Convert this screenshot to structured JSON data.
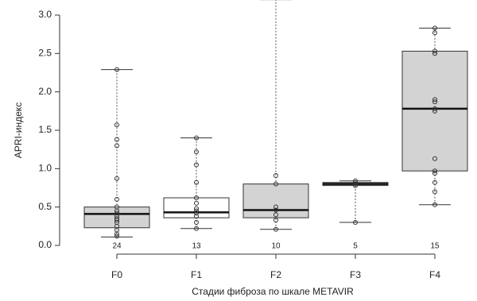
{
  "chart_data": {
    "type": "box",
    "x_label": "Стадии фиброза по шкале METAVIR",
    "y_label": "APRI-индекс",
    "categories": [
      "F0",
      "F1",
      "F2",
      "F3",
      "F4"
    ],
    "counts": [
      24,
      13,
      10,
      5,
      15
    ],
    "ylim": [
      0,
      3.0
    ],
    "yticks": [
      {
        "value": 0,
        "label": "0.0"
      },
      {
        "value": 0.5,
        "label": "0.5"
      },
      {
        "value": 1,
        "label": "1.0"
      },
      {
        "value": 1.5,
        "label": "1.5"
      },
      {
        "value": 2,
        "label": "2.0"
      },
      {
        "value": 2.5,
        "label": "2.5"
      },
      {
        "value": 3,
        "label": "3.0"
      }
    ],
    "boxes": [
      {
        "whisker_low": 0.11,
        "q1": 0.23,
        "median": 0.41,
        "q3": 0.5,
        "whisker_high": 2.29,
        "color": "#d3d3d3",
        "points": [
          2.29,
          1.57,
          1.38,
          1.3,
          0.87,
          0.6,
          0.5,
          0.45,
          0.42,
          0.38,
          0.35,
          0.33,
          0.3,
          0.25,
          0.2,
          0.15,
          0.12
        ]
      },
      {
        "whisker_low": 0.22,
        "q1": 0.36,
        "median": 0.43,
        "q3": 0.62,
        "whisker_high": 1.4,
        "color": "#ffffff",
        "points": [
          1.4,
          1.22,
          1.05,
          0.82,
          0.62,
          0.55,
          0.48,
          0.45,
          0.42,
          0.38,
          0.3,
          0.22
        ]
      },
      {
        "whisker_low": 0.21,
        "q1": 0.36,
        "median": 0.46,
        "q3": 0.8,
        "whisker_high": 3.2,
        "color": "#d3d3d3",
        "points": [
          0.91,
          0.8,
          0.5,
          0.46,
          0.4,
          0.33,
          0.21
        ]
      },
      {
        "whisker_low": 0.3,
        "q1": 0.78,
        "median": 0.8,
        "q3": 0.82,
        "whisker_high": 0.84,
        "color": "#d3d3d3",
        "points": [
          0.84,
          0.82,
          0.8,
          0.78,
          0.3
        ]
      },
      {
        "whisker_low": 0.53,
        "q1": 0.97,
        "median": 1.78,
        "q3": 2.53,
        "whisker_high": 2.83,
        "color": "#d3d3d3",
        "points": [
          2.83,
          2.77,
          2.53,
          2.5,
          1.9,
          1.87,
          1.78,
          1.75,
          1.13,
          0.97,
          0.94,
          0.82,
          0.7,
          0.53
        ]
      }
    ]
  }
}
